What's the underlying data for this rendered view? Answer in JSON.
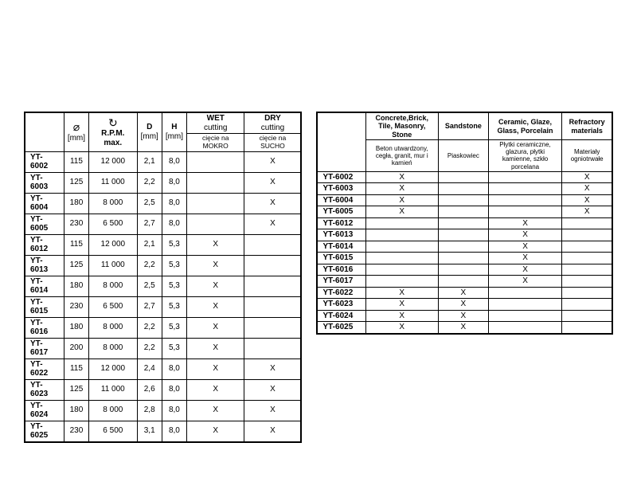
{
  "left": {
    "headers": {
      "diameter_sym": "⌀",
      "diameter_unit": "[mm]",
      "rpm_sym": "↻",
      "rpm_label": "R.P.M. max.",
      "d_label": "D",
      "d_unit": "[mm]",
      "h_label": "H",
      "h_unit": "[mm]",
      "wet_top": "WET",
      "wet_mid": "cutting",
      "wet_sub": "cięcie na MOKRO",
      "dry_top": "DRY",
      "dry_mid": "cutting",
      "dry_sub": "cięcie na SUCHO"
    },
    "rows": [
      {
        "model": "YT-6002",
        "dia": "115",
        "rpm": "12 000",
        "d": "2,1",
        "h": "8,0",
        "wet": "",
        "dry": "X"
      },
      {
        "model": "YT-6003",
        "dia": "125",
        "rpm": "11 000",
        "d": "2,2",
        "h": "8,0",
        "wet": "",
        "dry": "X"
      },
      {
        "model": "YT-6004",
        "dia": "180",
        "rpm": "8 000",
        "d": "2,5",
        "h": "8,0",
        "wet": "",
        "dry": "X"
      },
      {
        "model": "YT-6005",
        "dia": "230",
        "rpm": "6 500",
        "d": "2,7",
        "h": "8,0",
        "wet": "",
        "dry": "X"
      },
      {
        "model": "YT-6012",
        "dia": "115",
        "rpm": "12 000",
        "d": "2,1",
        "h": "5,3",
        "wet": "X",
        "dry": ""
      },
      {
        "model": "YT-6013",
        "dia": "125",
        "rpm": "11 000",
        "d": "2,2",
        "h": "5,3",
        "wet": "X",
        "dry": ""
      },
      {
        "model": "YT-6014",
        "dia": "180",
        "rpm": "8 000",
        "d": "2,5",
        "h": "5,3",
        "wet": "X",
        "dry": ""
      },
      {
        "model": "YT-6015",
        "dia": "230",
        "rpm": "6 500",
        "d": "2,7",
        "h": "5,3",
        "wet": "X",
        "dry": ""
      },
      {
        "model": "YT-6016",
        "dia": "180",
        "rpm": "8 000",
        "d": "2,2",
        "h": "5,3",
        "wet": "X",
        "dry": ""
      },
      {
        "model": "YT-6017",
        "dia": "200",
        "rpm": "8 000",
        "d": "2,2",
        "h": "5,3",
        "wet": "X",
        "dry": ""
      },
      {
        "model": "YT-6022",
        "dia": "115",
        "rpm": "12 000",
        "d": "2,4",
        "h": "8,0",
        "wet": "X",
        "dry": "X"
      },
      {
        "model": "YT-6023",
        "dia": "125",
        "rpm": "11 000",
        "d": "2,6",
        "h": "8,0",
        "wet": "X",
        "dry": "X"
      },
      {
        "model": "YT-6024",
        "dia": "180",
        "rpm": "8 000",
        "d": "2,8",
        "h": "8,0",
        "wet": "X",
        "dry": "X"
      },
      {
        "model": "YT-6025",
        "dia": "230",
        "rpm": "6 500",
        "d": "3,1",
        "h": "8,0",
        "wet": "X",
        "dry": "X"
      }
    ]
  },
  "right": {
    "headers": {
      "c1_top": "Concrete,Brick, Tile, Masonry, Stone",
      "c1_sub": "Beton utwardzony, cegła, granit, mur i kamień",
      "c2_top": "Sandstone",
      "c2_sub": "Piaskowiec",
      "c3_top": "Ceramic, Glaze, Glass, Porcelain",
      "c3_sub": "Płytki ceramiczne, glazura, płytki kamienne, szkło porcelana",
      "c4_top": "Refractory materials",
      "c4_sub": "Materiały ogniotrwałe"
    },
    "rows": [
      {
        "model": "YT-6002",
        "c1": "X",
        "c2": "",
        "c3": "",
        "c4": "X"
      },
      {
        "model": "YT-6003",
        "c1": "X",
        "c2": "",
        "c3": "",
        "c4": "X"
      },
      {
        "model": "YT-6004",
        "c1": "X",
        "c2": "",
        "c3": "",
        "c4": "X"
      },
      {
        "model": "YT-6005",
        "c1": "X",
        "c2": "",
        "c3": "",
        "c4": "X"
      },
      {
        "model": "YT-6012",
        "c1": "",
        "c2": "",
        "c3": "X",
        "c4": ""
      },
      {
        "model": "YT-6013",
        "c1": "",
        "c2": "",
        "c3": "X",
        "c4": ""
      },
      {
        "model": "YT-6014",
        "c1": "",
        "c2": "",
        "c3": "X",
        "c4": ""
      },
      {
        "model": "YT-6015",
        "c1": "",
        "c2": "",
        "c3": "X",
        "c4": ""
      },
      {
        "model": "YT-6016",
        "c1": "",
        "c2": "",
        "c3": "X",
        "c4": ""
      },
      {
        "model": "YT-6017",
        "c1": "",
        "c2": "",
        "c3": "X",
        "c4": ""
      },
      {
        "model": "YT-6022",
        "c1": "X",
        "c2": "X",
        "c3": "",
        "c4": ""
      },
      {
        "model": "YT-6023",
        "c1": "X",
        "c2": "X",
        "c3": "",
        "c4": ""
      },
      {
        "model": "YT-6024",
        "c1": "X",
        "c2": "X",
        "c3": "",
        "c4": ""
      },
      {
        "model": "YT-6025",
        "c1": "X",
        "c2": "X",
        "c3": "",
        "c4": ""
      }
    ]
  },
  "style": {
    "border_color": "#000000",
    "background_color": "#ffffff",
    "text_color": "#000000",
    "font_family": "Arial",
    "body_font_size_pt": 10,
    "header_font_size_pt": 10,
    "right_header_font_size_pt": 9
  }
}
